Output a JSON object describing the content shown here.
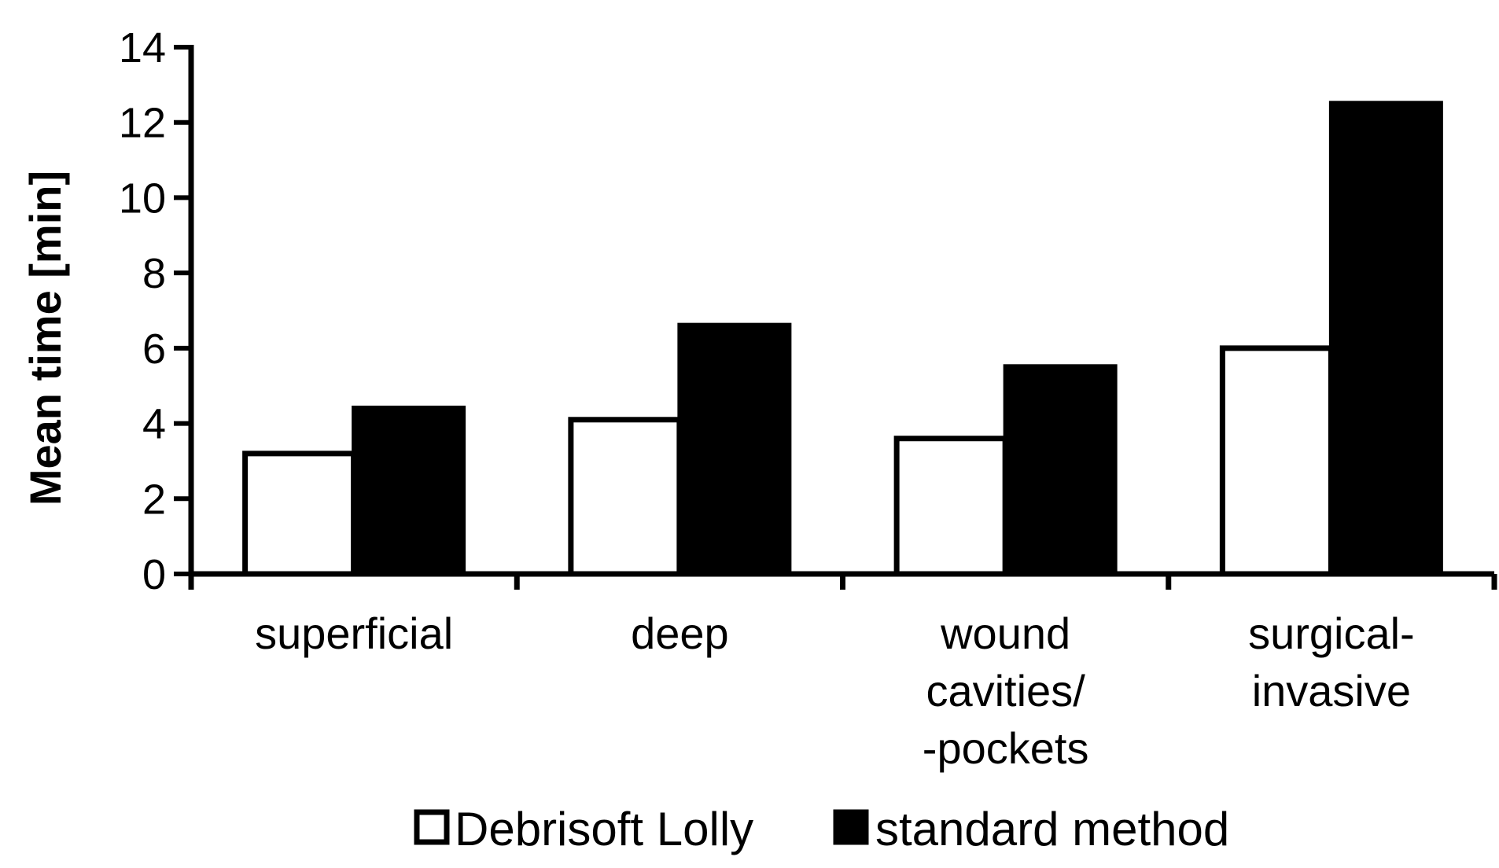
{
  "chart_data": {
    "type": "bar",
    "title": "",
    "xlabel": "",
    "ylabel": "Mean time [min]",
    "ylim": [
      0,
      14
    ],
    "yticks": [
      0,
      2,
      4,
      6,
      8,
      10,
      12,
      14
    ],
    "grid": false,
    "legend_position": "bottom",
    "categories": [
      [
        "superficial"
      ],
      [
        "deep"
      ],
      [
        "wound",
        "cavities/",
        "-pockets"
      ],
      [
        "surgical-",
        "invasive"
      ]
    ],
    "series": [
      {
        "name": "Debrisoft Lolly",
        "values": [
          3.2,
          4.1,
          3.6,
          6.0
        ],
        "fill": "#ffffff",
        "stroke": "#000000"
      },
      {
        "name": "standard method",
        "values": [
          4.4,
          6.6,
          5.5,
          12.5
        ],
        "fill": "#000000",
        "stroke": "#000000"
      }
    ]
  }
}
